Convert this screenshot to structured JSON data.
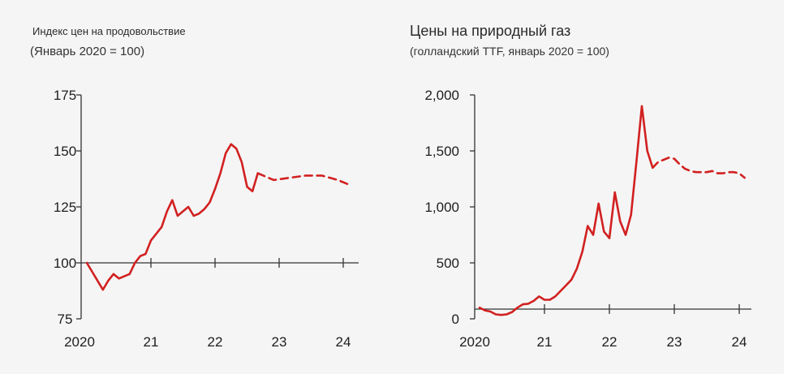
{
  "chart_data": [
    {
      "type": "line",
      "title": "Индекс цен на продовольствие",
      "subtitle": "(Январь 2020 = 100)",
      "x_tick_labels": [
        "2020",
        "21",
        "22",
        "23",
        "24"
      ],
      "y_tick_labels": [
        "175",
        "150",
        "125",
        "100",
        "75"
      ],
      "ylim": [
        75,
        175
      ],
      "grid": false,
      "legend": "none",
      "line_color": "#d22020",
      "series": [
        {
          "style": "solid",
          "x": [
            "2020-01",
            "2020-02",
            "2020-03",
            "2020-04",
            "2020-05",
            "2020-06",
            "2020-07",
            "2020-08",
            "2020-09",
            "2020-10",
            "2020-11",
            "2020-12",
            "2021-01",
            "2021-02",
            "2021-03",
            "2021-04",
            "2021-05",
            "2021-06",
            "2021-07",
            "2021-08",
            "2021-09",
            "2021-10",
            "2021-11",
            "2021-12",
            "2022-01",
            "2022-02",
            "2022-03",
            "2022-04",
            "2022-05",
            "2022-06",
            "2022-07",
            "2022-08",
            "2022-09"
          ],
          "values": [
            100,
            96,
            92,
            88,
            92,
            95,
            93,
            94,
            95,
            100,
            103,
            104,
            110,
            113,
            116,
            123,
            128,
            121,
            123,
            125,
            121,
            122,
            124,
            127,
            133,
            140,
            149,
            153,
            151,
            145,
            134,
            132,
            140
          ]
        },
        {
          "style": "dashed",
          "x": [
            "2022-09",
            "2022-12",
            "2023-03",
            "2023-06",
            "2023-09",
            "2023-12",
            "2024-02"
          ],
          "values": [
            140,
            137,
            138,
            139,
            139,
            137,
            135
          ]
        }
      ]
    },
    {
      "type": "line",
      "title": "Цены на природный газ",
      "subtitle": "(голландский TTF, январь 2020 = 100)",
      "x_tick_labels": [
        "2020",
        "21",
        "22",
        "23",
        "24"
      ],
      "y_tick_labels": [
        "2,000",
        "1,500",
        "1,000",
        "500",
        "0"
      ],
      "ylim": [
        0,
        2000
      ],
      "grid": false,
      "legend": "none",
      "line_color": "#d22020",
      "series": [
        {
          "style": "solid",
          "x": [
            "2020-01",
            "2020-02",
            "2020-03",
            "2020-04",
            "2020-05",
            "2020-06",
            "2020-07",
            "2020-08",
            "2020-09",
            "2020-10",
            "2020-11",
            "2020-12",
            "2021-01",
            "2021-02",
            "2021-03",
            "2021-04",
            "2021-05",
            "2021-06",
            "2021-07",
            "2021-08",
            "2021-09",
            "2021-10",
            "2021-11",
            "2021-12",
            "2022-01",
            "2022-02",
            "2022-03",
            "2022-04",
            "2022-05",
            "2022-06",
            "2022-07",
            "2022-08",
            "2022-09"
          ],
          "values": [
            100,
            75,
            65,
            40,
            35,
            40,
            60,
            100,
            130,
            135,
            160,
            200,
            170,
            170,
            200,
            250,
            300,
            350,
            450,
            600,
            830,
            750,
            1030,
            780,
            720,
            1130,
            870,
            750,
            930,
            1400,
            1900,
            1500,
            1350
          ]
        },
        {
          "style": "dashed",
          "x": [
            "2022-09",
            "2022-10",
            "2022-11",
            "2022-12",
            "2023-01",
            "2023-02",
            "2023-03",
            "2023-04",
            "2023-05",
            "2023-06",
            "2023-07",
            "2023-08",
            "2023-09",
            "2023-10",
            "2023-11",
            "2023-12",
            "2024-01",
            "2024-02"
          ],
          "values": [
            1350,
            1400,
            1420,
            1440,
            1430,
            1380,
            1340,
            1320,
            1310,
            1310,
            1310,
            1320,
            1300,
            1300,
            1310,
            1310,
            1300,
            1260
          ]
        }
      ]
    }
  ]
}
